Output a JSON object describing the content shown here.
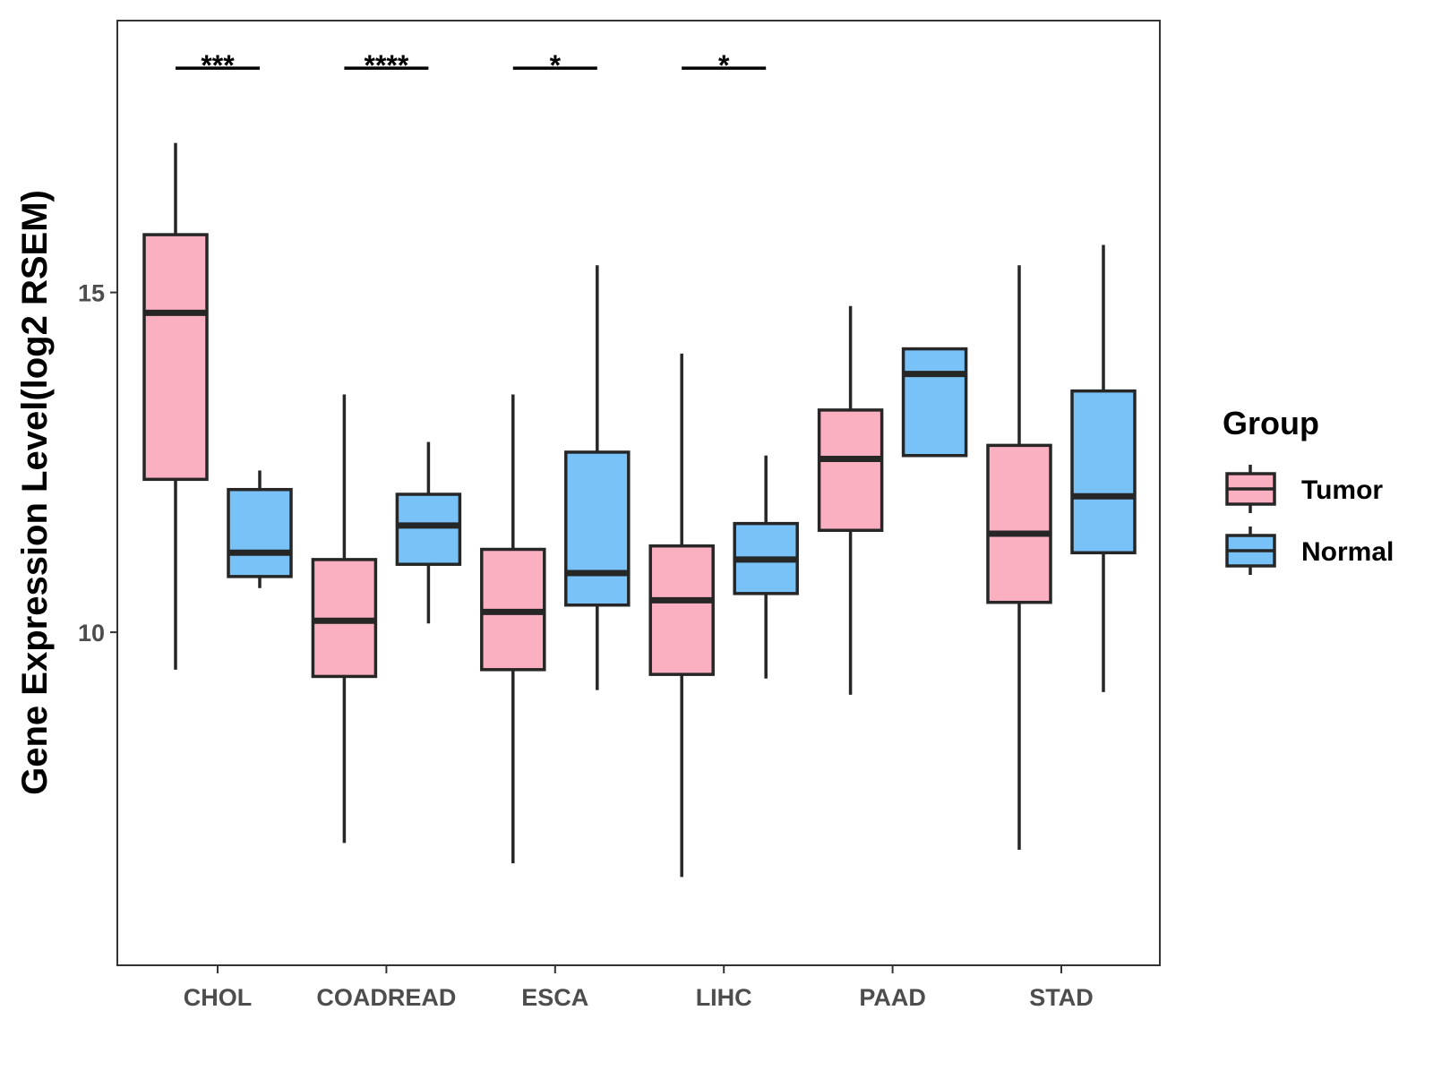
{
  "chart_data": {
    "type": "boxplot",
    "title": "",
    "xlabel": "",
    "ylabel": "Gene Expression Level(log2 RSEM)",
    "ylim": [
      5.1,
      19.0
    ],
    "yticks": [
      10,
      15
    ],
    "categories": [
      "CHOL",
      "COADREAD",
      "ESCA",
      "LIHC",
      "PAAD",
      "STAD"
    ],
    "legend": {
      "title": "Group",
      "position": "right",
      "entries": [
        "Tumor",
        "Normal"
      ]
    },
    "colors": {
      "Tumor": "#fbb0c2",
      "Normal": "#79c2f7",
      "outline": "#262626",
      "frame": "#333333"
    },
    "series": [
      {
        "name": "Tumor",
        "boxes": [
          {
            "category": "CHOL",
            "min": 9.45,
            "q1": 12.25,
            "median": 14.7,
            "q3": 15.85,
            "max": 17.2
          },
          {
            "category": "COADREAD",
            "min": 6.9,
            "q1": 9.35,
            "median": 10.17,
            "q3": 11.07,
            "max": 13.5
          },
          {
            "category": "ESCA",
            "min": 6.6,
            "q1": 9.45,
            "median": 10.3,
            "q3": 11.22,
            "max": 13.5
          },
          {
            "category": "LIHC",
            "min": 6.4,
            "q1": 9.38,
            "median": 10.47,
            "q3": 11.27,
            "max": 14.1
          },
          {
            "category": "PAAD",
            "min": 9.08,
            "q1": 11.5,
            "median": 12.55,
            "q3": 13.27,
            "max": 14.8
          },
          {
            "category": "STAD",
            "min": 6.8,
            "q1": 10.44,
            "median": 11.45,
            "q3": 12.75,
            "max": 15.4
          }
        ]
      },
      {
        "name": "Normal",
        "boxes": [
          {
            "category": "CHOL",
            "min": 10.65,
            "q1": 10.82,
            "median": 11.17,
            "q3": 12.1,
            "max": 12.38
          },
          {
            "category": "COADREAD",
            "min": 10.13,
            "q1": 11.0,
            "median": 11.57,
            "q3": 12.03,
            "max": 12.8
          },
          {
            "category": "ESCA",
            "min": 9.15,
            "q1": 10.4,
            "median": 10.87,
            "q3": 12.65,
            "max": 15.4
          },
          {
            "category": "LIHC",
            "min": 9.32,
            "q1": 10.57,
            "median": 11.07,
            "q3": 11.6,
            "max": 12.6
          },
          {
            "category": "PAAD",
            "min": 12.6,
            "q1": 12.6,
            "median": 13.8,
            "q3": 14.17,
            "max": 14.17
          },
          {
            "category": "STAD",
            "min": 9.12,
            "q1": 11.17,
            "median": 12.0,
            "q3": 13.55,
            "max": 15.7
          }
        ]
      }
    ],
    "significance": [
      {
        "category": "CHOL",
        "label": "***",
        "y": 18.3
      },
      {
        "category": "COADREAD",
        "label": "****",
        "y": 18.3
      },
      {
        "category": "ESCA",
        "label": "*",
        "y": 18.3
      },
      {
        "category": "LIHC",
        "label": "*",
        "y": 18.3
      }
    ]
  }
}
